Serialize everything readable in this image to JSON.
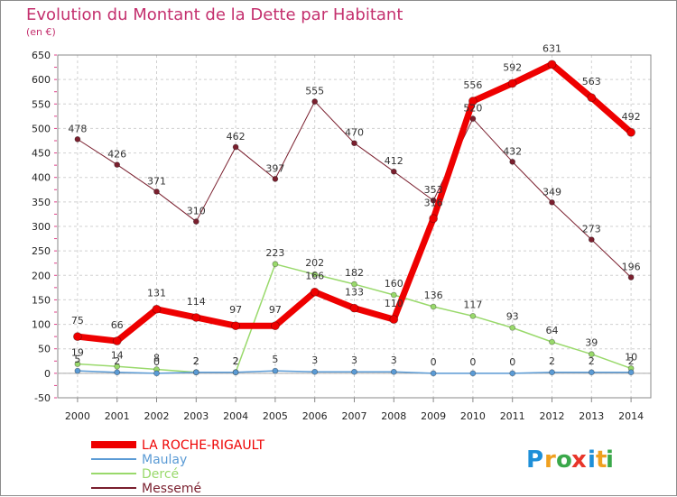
{
  "chart_data": {
    "type": "line",
    "title": "Evolution du Montant de la Dette par Habitant",
    "subtitle": "(en €)",
    "xlabel": "",
    "ylabel": "",
    "ylim": [
      -50,
      650
    ],
    "yticks": [
      -50,
      0,
      50,
      100,
      150,
      200,
      250,
      300,
      350,
      400,
      450,
      500,
      550,
      600,
      650
    ],
    "grid": true,
    "legend_position": "bottom-left",
    "categories": [
      "2000",
      "2001",
      "2002",
      "2003",
      "2004",
      "2005",
      "2006",
      "2007",
      "2008",
      "2009",
      "2010",
      "2011",
      "2012",
      "2013",
      "2014"
    ],
    "series": [
      {
        "name": "Messemé",
        "color": "#7a1f2e",
        "width": 1,
        "values": [
          478,
          426,
          371,
          310,
          462,
          397,
          555,
          470,
          412,
          353,
          520,
          432,
          349,
          273,
          196
        ]
      },
      {
        "name": "Dercé",
        "color": "#99d96b",
        "width": 1.5,
        "values": [
          19,
          14,
          8,
          2,
          2,
          223,
          202,
          182,
          160,
          136,
          117,
          93,
          64,
          39,
          10
        ]
      },
      {
        "name": "Maulay",
        "color": "#5b9bd5",
        "width": 1.5,
        "values": [
          5,
          2,
          0,
          2,
          2,
          5,
          3,
          3,
          3,
          0,
          0,
          0,
          2,
          2,
          2
        ]
      },
      {
        "name": "LA ROCHE-RIGAULT",
        "color": "#ee0000",
        "width": 7,
        "values": [
          75,
          66,
          131,
          114,
          97,
          97,
          166,
          133,
          110,
          316,
          556,
          592,
          631,
          563,
          492
        ]
      }
    ],
    "legend": [
      {
        "name": "LA ROCHE-RIGAULT",
        "color": "#ee0000"
      },
      {
        "name": "Maulay",
        "color": "#5b9bd5"
      },
      {
        "name": "Dercé",
        "color": "#99d96b"
      },
      {
        "name": "Messemé",
        "color": "#7a1f2e"
      }
    ]
  },
  "brand": {
    "letters": [
      "P",
      "r",
      "o",
      "x",
      "i",
      "t",
      "i"
    ],
    "colors": [
      "#1e8fd8",
      "#f0a020",
      "#3aa84a",
      "#e8352a",
      "#1e8fd8",
      "#f0a020",
      "#3aa84a"
    ]
  }
}
